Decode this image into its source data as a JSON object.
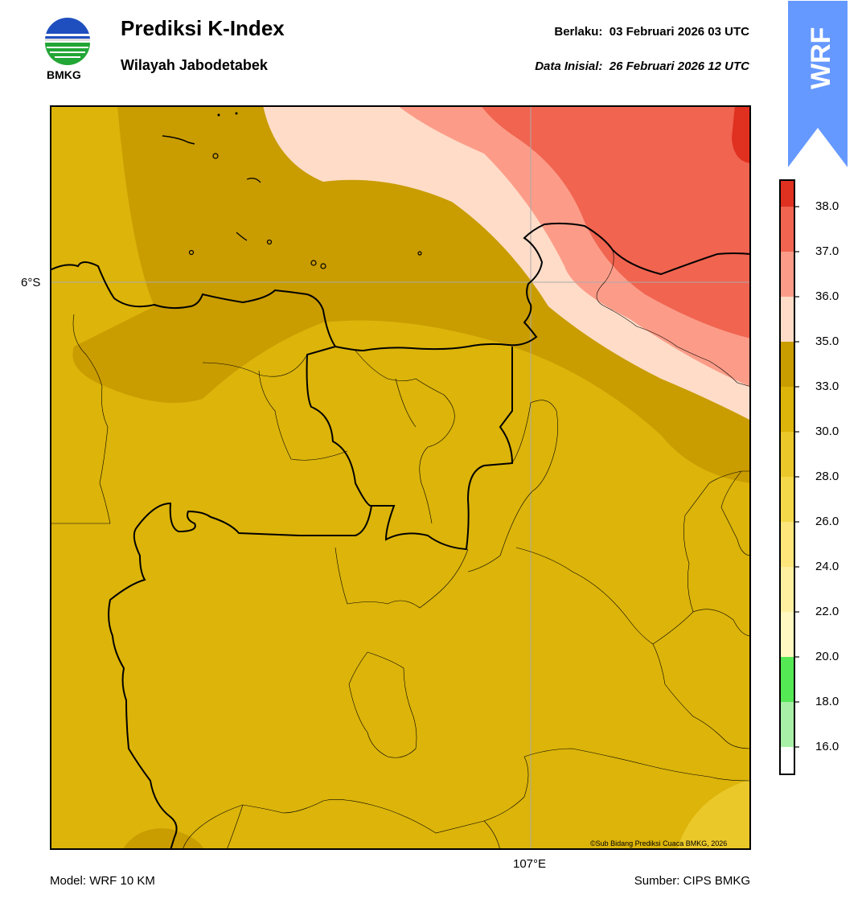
{
  "header": {
    "title": "Prediksi K-Index",
    "subtitle": "Wilayah Jabodetabek",
    "valid_label": "Berlaku:",
    "valid_value": "03 Februari 2026 03 UTC",
    "init_label": "Data Inisial:",
    "init_value": "26 Februari 2026 12 UTC",
    "logo_text": "BMKG",
    "badge_text": "WRF"
  },
  "map": {
    "lat_label": "6°S",
    "lon_label": "107°E",
    "credit": "©Sub Bidang Prediksi Cuaca BMKG, 2026"
  },
  "footer": {
    "model": "Model: WRF 10 KM",
    "source": "Sumber: CIPS BMKG"
  },
  "colorbar": {
    "ticks": [
      "16.0",
      "18.0",
      "20.0",
      "22.0",
      "24.0",
      "26.0",
      "28.0",
      "30.0",
      "33.0",
      "35.0",
      "36.0",
      "37.0",
      "38.0"
    ],
    "colors": [
      "#ffffff",
      "#a8f0a8",
      "#55e855",
      "#fff8c0",
      "#fff0a0",
      "#ffe67a",
      "#f5d84a",
      "#ebc82a",
      "#dcb40a",
      "#c99c00",
      "#ffdcc8",
      "#fc9c88",
      "#f06450",
      "#e03020"
    ]
  },
  "colors": {
    "low_k": "#dcb40a",
    "mid_k": "#c99c00",
    "high_k_1": "#ffdcc8",
    "high_k_2": "#fc9c88",
    "high_k_3": "#f06450",
    "badge": "#6699ff"
  }
}
